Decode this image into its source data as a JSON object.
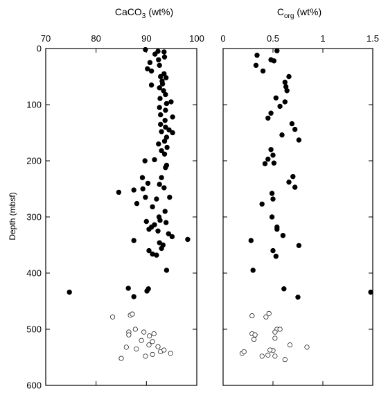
{
  "chart_data": [
    {
      "type": "scatter",
      "title_main": "CaCO",
      "title_sub": "3",
      "title_unit": "(wt%)",
      "ylabel": "Depth (mbsf)",
      "xlim": [
        70,
        100
      ],
      "ylim": [
        0,
        600
      ],
      "y_inverted": true,
      "x_ticks": [
        70,
        80,
        90,
        100
      ],
      "y_ticks": [
        0,
        100,
        200,
        300,
        400,
        500,
        600
      ],
      "grid": false,
      "series": [
        {
          "marker": "filled-circle",
          "points": [
            [
              89.8,
              2
            ],
            [
              92.3,
              5
            ],
            [
              93.5,
              6
            ],
            [
              91.7,
              10
            ],
            [
              93.6,
              15
            ],
            [
              92.4,
              20
            ],
            [
              90.7,
              25
            ],
            [
              92.6,
              30
            ],
            [
              90.2,
              36
            ],
            [
              91.0,
              40
            ],
            [
              93.5,
              45
            ],
            [
              92.8,
              50
            ],
            [
              93.9,
              52
            ],
            [
              93.1,
              58
            ],
            [
              93.2,
              63
            ],
            [
              91.0,
              65
            ],
            [
              92.6,
              70
            ],
            [
              93.4,
              75
            ],
            [
              93.8,
              82
            ],
            [
              92.7,
              89
            ],
            [
              94.9,
              95
            ],
            [
              94.0,
              98
            ],
            [
              92.6,
              105
            ],
            [
              93.8,
              110
            ],
            [
              92.8,
              118
            ],
            [
              95.2,
              122
            ],
            [
              93.7,
              128
            ],
            [
              92.8,
              135
            ],
            [
              93.8,
              140
            ],
            [
              94.5,
              145
            ],
            [
              93.0,
              148
            ],
            [
              95.2,
              150
            ],
            [
              94.0,
              158
            ],
            [
              93.6,
              165
            ],
            [
              92.4,
              170
            ],
            [
              94.1,
              176
            ],
            [
              93.0,
              182
            ],
            [
              93.6,
              188
            ],
            [
              89.7,
              200
            ],
            [
              91.6,
              198
            ],
            [
              94.0,
              208
            ],
            [
              93.8,
              212
            ],
            [
              93.0,
              230
            ],
            [
              90.3,
              240
            ],
            [
              89.2,
              230
            ],
            [
              92.6,
              242
            ],
            [
              93.5,
              248
            ],
            [
              89.3,
              250
            ],
            [
              87.5,
              252
            ],
            [
              84.5,
              256
            ],
            [
              89.8,
              265
            ],
            [
              92.0,
              268
            ],
            [
              94.6,
              265
            ],
            [
              88.1,
              276
            ],
            [
              91.2,
              282
            ],
            [
              93.7,
              290
            ],
            [
              92.5,
              300
            ],
            [
              92.7,
              306
            ],
            [
              90.0,
              308
            ],
            [
              93.9,
              310
            ],
            [
              91.6,
              314
            ],
            [
              91.0,
              318
            ],
            [
              90.5,
              322
            ],
            [
              92.3,
              325
            ],
            [
              94.4,
              330
            ],
            [
              95.1,
              335
            ],
            [
              98.2,
              340
            ],
            [
              87.5,
              342
            ],
            [
              92.6,
              346
            ],
            [
              93.3,
              350
            ],
            [
              93.0,
              356
            ],
            [
              90.5,
              360
            ],
            [
              91.2,
              366
            ],
            [
              92.0,
              368
            ],
            [
              94.0,
              395
            ],
            [
              74.7,
              434
            ],
            [
              86.4,
              427
            ],
            [
              90.4,
              428
            ],
            [
              90.1,
              432
            ],
            [
              87.5,
              442
            ]
          ]
        },
        {
          "marker": "open-circle",
          "points": [
            [
              83.3,
              478
            ],
            [
              86.8,
              475
            ],
            [
              87.2,
              473
            ],
            [
              86.5,
              505
            ],
            [
              86.5,
              510
            ],
            [
              87.8,
              500
            ],
            [
              89.5,
              505
            ],
            [
              89.0,
              520
            ],
            [
              90.6,
              512
            ],
            [
              86.0,
              532
            ],
            [
              88.0,
              535
            ],
            [
              90.5,
              528
            ],
            [
              91.2,
              522
            ],
            [
              92.3,
              531
            ],
            [
              92.8,
              540
            ],
            [
              93.5,
              537
            ],
            [
              94.8,
              543
            ],
            [
              85.0,
              552
            ],
            [
              89.8,
              548
            ],
            [
              91.2,
              545
            ],
            [
              91.5,
              508
            ]
          ]
        }
      ]
    },
    {
      "type": "scatter",
      "title_main": "C",
      "title_sub": "org",
      "title_unit": "(wt%)",
      "xlim": [
        0,
        1.5
      ],
      "ylim": [
        0,
        600
      ],
      "y_inverted": true,
      "x_ticks": [
        0,
        0.5,
        1,
        1.5
      ],
      "x_tick_labels": [
        "0",
        "0.5",
        "1",
        "1.5"
      ],
      "grid": false,
      "series": [
        {
          "marker": "filled-circle",
          "points": [
            [
              0.54,
              4
            ],
            [
              0.34,
              12
            ],
            [
              0.48,
              20
            ],
            [
              0.33,
              30
            ],
            [
              0.4,
              40
            ],
            [
              0.51,
              22
            ],
            [
              0.66,
              50
            ],
            [
              0.62,
              60
            ],
            [
              0.63,
              68
            ],
            [
              0.64,
              75
            ],
            [
              0.53,
              88
            ],
            [
              0.62,
              95
            ],
            [
              0.57,
              103
            ],
            [
              0.48,
              115
            ],
            [
              0.45,
              124
            ],
            [
              0.69,
              134
            ],
            [
              0.72,
              144
            ],
            [
              0.59,
              154
            ],
            [
              0.76,
              163
            ],
            [
              0.48,
              180
            ],
            [
              0.5,
              190
            ],
            [
              0.45,
              197
            ],
            [
              0.42,
              205
            ],
            [
              0.51,
              204
            ],
            [
              0.7,
              228
            ],
            [
              0.66,
              238
            ],
            [
              0.72,
              247
            ],
            [
              0.49,
              258
            ],
            [
              0.5,
              268
            ],
            [
              0.39,
              277
            ],
            [
              0.49,
              300
            ],
            [
              0.54,
              318
            ],
            [
              0.54,
              322
            ],
            [
              0.6,
              333
            ],
            [
              0.28,
              342
            ],
            [
              0.76,
              351
            ],
            [
              0.5,
              360
            ],
            [
              0.53,
              370
            ],
            [
              0.3,
              395
            ],
            [
              0.61,
              428
            ],
            [
              0.75,
              443
            ],
            [
              1.48,
              434
            ]
          ]
        },
        {
          "marker": "open-circle",
          "points": [
            [
              0.29,
              476
            ],
            [
              0.43,
              478
            ],
            [
              0.46,
              472
            ],
            [
              0.54,
              500
            ],
            [
              0.57,
              500
            ],
            [
              0.52,
              505
            ],
            [
              0.29,
              508
            ],
            [
              0.31,
              518
            ],
            [
              0.52,
              516
            ],
            [
              0.67,
              528
            ],
            [
              0.84,
              532
            ],
            [
              0.5,
              538
            ],
            [
              0.47,
              537
            ],
            [
              0.19,
              543
            ],
            [
              0.21,
              540
            ],
            [
              0.45,
              546
            ],
            [
              0.52,
              548
            ],
            [
              0.39,
              548
            ],
            [
              0.62,
              554
            ],
            [
              0.32,
              510
            ]
          ]
        }
      ]
    }
  ]
}
